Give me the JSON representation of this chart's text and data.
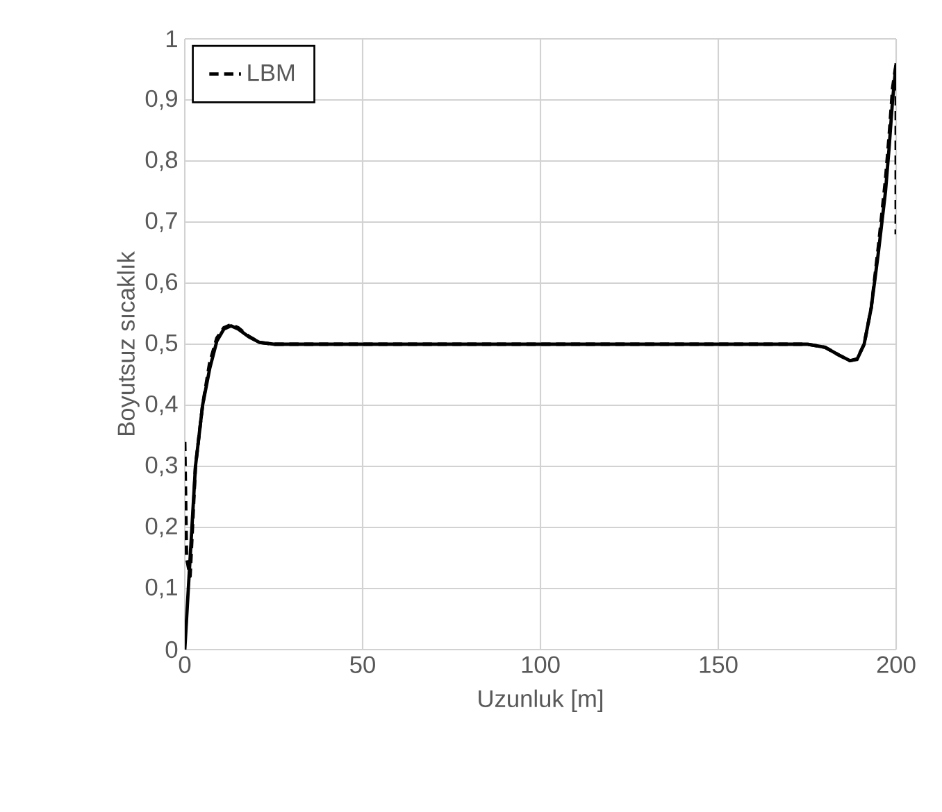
{
  "chart_data": {
    "type": "line",
    "xlabel": "Uzunluk [m]",
    "ylabel": "Boyutsuz sıcaklık",
    "xlim": [
      0,
      200
    ],
    "xticks": [
      0,
      50,
      100,
      150,
      200
    ],
    "ylim": [
      0,
      1
    ],
    "yticks": [
      0,
      {
        "value": 0.1,
        "label": "0,1"
      },
      {
        "value": 0.2,
        "label": "0,2"
      },
      {
        "value": 0.3,
        "label": "0,3"
      },
      {
        "value": 0.4,
        "label": "0,4"
      },
      {
        "value": 0.5,
        "label": "0,5"
      },
      {
        "value": 0.6,
        "label": "0,6"
      },
      {
        "value": 0.7,
        "label": "0,7"
      },
      {
        "value": 0.8,
        "label": "0,8"
      },
      {
        "value": 0.9,
        "label": "0,9"
      },
      1
    ],
    "grid": true,
    "legend": "top left",
    "series": [
      {
        "color": "#000000",
        "line_style": "solid",
        "x": [
          0,
          1,
          2,
          3,
          5,
          7,
          9,
          11,
          13,
          15,
          18,
          21,
          25,
          50,
          100,
          150,
          175,
          180,
          184,
          187,
          189,
          191,
          193,
          195,
          197,
          198,
          199,
          200
        ],
        "values": [
          0,
          0.1,
          0.2,
          0.3,
          0.4,
          0.46,
          0.505,
          0.525,
          0.53,
          0.525,
          0.512,
          0.503,
          0.5,
          0.5,
          0.5,
          0.5,
          0.5,
          0.495,
          0.482,
          0.473,
          0.475,
          0.5,
          0.56,
          0.65,
          0.75,
          0.82,
          0.9,
          0.96
        ]
      },
      {
        "name": "LBM",
        "color": "#000000",
        "line_style": "dashed",
        "x": [
          0,
          0.5,
          1.5,
          3,
          5,
          7,
          9,
          11,
          13,
          15,
          18,
          21,
          25,
          50,
          100,
          150,
          175,
          180,
          184,
          187,
          189,
          191,
          193,
          195,
          197,
          198,
          199,
          200,
          200
        ],
        "values": [
          0.34,
          0.15,
          0.12,
          0.3,
          0.4,
          0.47,
          0.51,
          0.527,
          0.532,
          0.527,
          0.513,
          0.503,
          0.5,
          0.5,
          0.5,
          0.5,
          0.5,
          0.495,
          0.482,
          0.473,
          0.476,
          0.5,
          0.56,
          0.66,
          0.77,
          0.84,
          0.92,
          0.96,
          0.68
        ]
      }
    ]
  }
}
